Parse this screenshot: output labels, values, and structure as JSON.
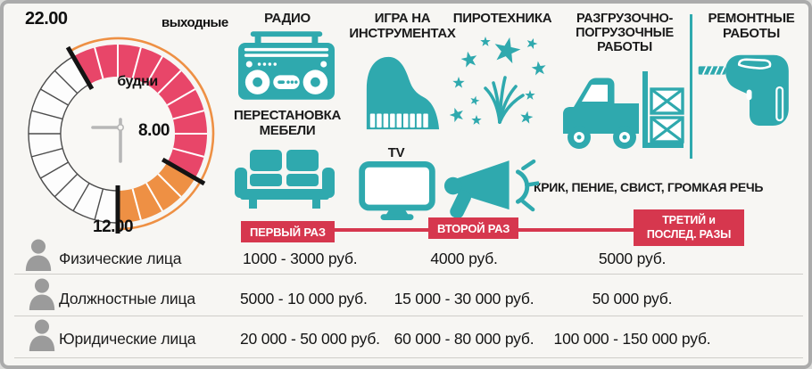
{
  "colors": {
    "teal": "#2FA9AE",
    "red": "#D6374E",
    "pink": "#E84669",
    "orange": "#EE9044",
    "person": "#9B9B9B"
  },
  "clock": {
    "weekend_label": "выходные",
    "weekday_label": "будни",
    "time_start": "22.00",
    "time_weekday_end": "8.00",
    "time_weekend_end": "12.00",
    "quiet_hours": {
      "start": 22,
      "weekday_end": 8,
      "weekend_end": 12
    }
  },
  "activities": [
    {
      "id": "radio",
      "label": "РАДИО"
    },
    {
      "id": "furniture",
      "label": "ПЕРЕСТАНОВКА МЕБЕЛИ"
    },
    {
      "id": "instruments",
      "label": "ИГРА НА ИНСТРУМЕНТАХ"
    },
    {
      "id": "tv",
      "label": "TV"
    },
    {
      "id": "fireworks",
      "label": "ПИРОТЕХНИКА"
    },
    {
      "id": "shouting",
      "label": "КРИК, ПЕНИЕ, СВИСТ, ГРОМКАЯ РЕЧЬ"
    },
    {
      "id": "loading",
      "label": "РАЗГРУЗОЧНО-ПОГРУЗОЧНЫЕ РАБОТЫ"
    },
    {
      "id": "repair",
      "label": "РЕМОНТНЫЕ РАБОТЫ"
    }
  ],
  "fines": {
    "stages": [
      "ПЕРВЫЙ РАЗ",
      "ВТОРОЙ РАЗ",
      "ТРЕТИЙ и ПОСЛЕД. РАЗЫ"
    ],
    "rows": [
      {
        "label": "Физические лица",
        "values": [
          "1000 - 3000 руб.",
          "4000 руб.",
          "5000 руб."
        ]
      },
      {
        "label": "Должностные лица",
        "values": [
          "5000 - 10 000 руб.",
          "15 000 - 30 000 руб.",
          "50 000 руб."
        ]
      },
      {
        "label": "Юридические лица",
        "values": [
          "20 000 - 50 000 руб.",
          "60 000 - 80 000 руб.",
          "100 000 - 150 000 руб."
        ]
      }
    ]
  }
}
